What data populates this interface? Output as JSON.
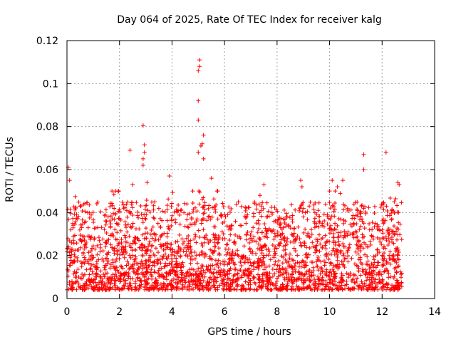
{
  "chart_data": {
    "type": "scatter",
    "title": "Day 064 of 2025, Rate Of TEC Index for receiver kalg",
    "xlabel": "GPS time / hours",
    "ylabel": "ROTI / TECUs",
    "xlim": [
      0,
      14
    ],
    "ylim": [
      0,
      0.12
    ],
    "xticks": [
      0,
      2,
      4,
      6,
      8,
      10,
      12,
      14
    ],
    "yticks": [
      0,
      0.02,
      0.04,
      0.06,
      0.08,
      0.1,
      0.12
    ],
    "xtick_labels": [
      "0",
      "2",
      "4",
      "6",
      "8",
      "10",
      "12",
      "14"
    ],
    "ytick_labels": [
      "0",
      "0.02",
      "0.04",
      "0.06",
      "0.08",
      "0.1",
      "0.12"
    ],
    "grid": true,
    "marker": "+",
    "color": "#ff0000",
    "data_x_range": [
      0,
      12.75
    ],
    "bulk_band": [
      0.004,
      0.03
    ],
    "notable_points": [
      {
        "x": 0.05,
        "y": 0.061
      },
      {
        "x": 0.1,
        "y": 0.055
      },
      {
        "x": 2.4,
        "y": 0.069
      },
      {
        "x": 2.5,
        "y": 0.053
      },
      {
        "x": 2.9,
        "y": 0.0805
      },
      {
        "x": 2.95,
        "y": 0.0715
      },
      {
        "x": 2.95,
        "y": 0.068
      },
      {
        "x": 2.9,
        "y": 0.065
      },
      {
        "x": 2.9,
        "y": 0.062
      },
      {
        "x": 3.05,
        "y": 0.054
      },
      {
        "x": 3.9,
        "y": 0.057
      },
      {
        "x": 5.0,
        "y": 0.106
      },
      {
        "x": 5.05,
        "y": 0.111
      },
      {
        "x": 5.05,
        "y": 0.108
      },
      {
        "x": 5.0,
        "y": 0.092
      },
      {
        "x": 5.0,
        "y": 0.083
      },
      {
        "x": 5.2,
        "y": 0.076
      },
      {
        "x": 5.15,
        "y": 0.072
      },
      {
        "x": 5.1,
        "y": 0.071
      },
      {
        "x": 5.0,
        "y": 0.068
      },
      {
        "x": 5.2,
        "y": 0.065
      },
      {
        "x": 5.5,
        "y": 0.056
      },
      {
        "x": 7.5,
        "y": 0.053
      },
      {
        "x": 7.35,
        "y": 0.048
      },
      {
        "x": 8.9,
        "y": 0.055
      },
      {
        "x": 8.95,
        "y": 0.052
      },
      {
        "x": 10.1,
        "y": 0.055
      },
      {
        "x": 10.3,
        "y": 0.052
      },
      {
        "x": 10.5,
        "y": 0.055
      },
      {
        "x": 11.3,
        "y": 0.067
      },
      {
        "x": 11.3,
        "y": 0.06
      },
      {
        "x": 12.15,
        "y": 0.068
      },
      {
        "x": 12.6,
        "y": 0.054
      },
      {
        "x": 12.65,
        "y": 0.053
      }
    ]
  }
}
